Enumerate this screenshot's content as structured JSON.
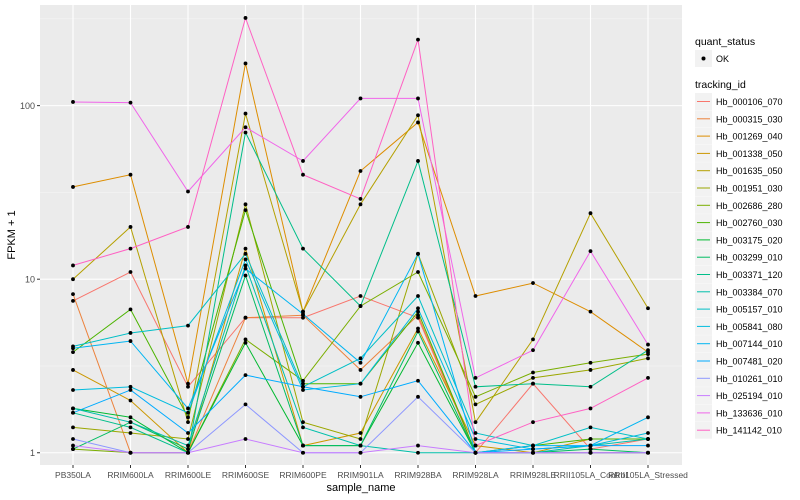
{
  "chart_data": {
    "type": "line",
    "xlabel": "sample_name",
    "ylabel": "FPKM + 1",
    "y_scale": "log10",
    "ylim": [
      0.85,
      380
    ],
    "y_ticks": [
      1,
      10,
      100
    ],
    "y_tick_labels": [
      "1",
      "10",
      "100"
    ],
    "categories": [
      "PB350LA",
      "RRIM600LA",
      "RRIM600LE",
      "RRIM600SE",
      "RRIM600PE",
      "RRIM901LA",
      "RRIM928BA",
      "RRIM928LA",
      "RRIM928LE",
      "RRII105LA_Control",
      "RRII105LA_Stressed"
    ],
    "legend_position": "right",
    "legend": {
      "status_title": "quant_status",
      "status_items": [
        "OK"
      ],
      "tracking_title": "tracking_id"
    },
    "grid": true,
    "series": [
      {
        "name": "Hb_000106_070",
        "color": "#F8766D",
        "values": [
          7.5,
          11.0,
          2.4,
          6.0,
          6.0,
          8.0,
          6.0,
          1.0,
          2.5,
          1.05,
          1.2
        ]
      },
      {
        "name": "Hb_000315_030",
        "color": "#EC823C",
        "values": [
          8.2,
          1.0,
          1.0,
          6.0,
          6.2,
          3.0,
          6.2,
          1.0,
          1.0,
          1.0,
          1.0
        ]
      },
      {
        "name": "Hb_001269_040",
        "color": "#DD8D00",
        "values": [
          34.0,
          40.0,
          2.5,
          175.0,
          6.5,
          42.0,
          80.0,
          8.0,
          9.5,
          6.5,
          3.8
        ]
      },
      {
        "name": "Hb_001338_050",
        "color": "#CB9700",
        "values": [
          3.0,
          2.0,
          1.0,
          15.0,
          1.1,
          1.3,
          5.2,
          1.1,
          1.0,
          1.2,
          1.2
        ]
      },
      {
        "name": "Hb_001635_050",
        "color": "#B5A000",
        "values": [
          10.0,
          20.0,
          1.5,
          90.0,
          6.5,
          27.0,
          88.0,
          1.5,
          4.5,
          24.0,
          6.8
        ]
      },
      {
        "name": "Hb_001951_030",
        "color": "#9BA700",
        "values": [
          1.4,
          1.3,
          1.2,
          27.0,
          1.5,
          1.2,
          14.0,
          1.9,
          2.7,
          3.0,
          3.5
        ]
      },
      {
        "name": "Hb_002686_280",
        "color": "#7AAE00",
        "values": [
          1.05,
          1.0,
          1.0,
          4.5,
          2.6,
          7.0,
          11.0,
          2.1,
          2.9,
          3.3,
          3.7
        ]
      },
      {
        "name": "Hb_002760_030",
        "color": "#4CB400",
        "values": [
          3.8,
          6.7,
          1.6,
          25.0,
          2.5,
          2.5,
          6.5,
          1.0,
          1.1,
          1.2,
          1.2
        ]
      },
      {
        "name": "Hb_003175_020",
        "color": "#00B930",
        "values": [
          1.8,
          1.6,
          1.0,
          4.3,
          1.1,
          1.1,
          4.3,
          1.0,
          1.0,
          1.0,
          1.0
        ]
      },
      {
        "name": "Hb_003299_010",
        "color": "#00BC62",
        "values": [
          1.05,
          1.5,
          1.05,
          10.5,
          1.1,
          1.1,
          5.0,
          1.0,
          1.0,
          1.05,
          1.0
        ]
      },
      {
        "name": "Hb_003371_120",
        "color": "#00BE89",
        "values": [
          1.7,
          1.4,
          1.0,
          70.0,
          15.0,
          7.0,
          48.0,
          2.4,
          2.5,
          2.4,
          3.9
        ]
      },
      {
        "name": "Hb_003384_070",
        "color": "#00BFAA",
        "values": [
          1.8,
          1.5,
          1.1,
          12.0,
          1.4,
          1.1,
          1.0,
          1.0,
          1.0,
          1.1,
          1.2
        ]
      },
      {
        "name": "Hb_005157_010",
        "color": "#00BFC6",
        "values": [
          4.1,
          4.9,
          5.4,
          14.0,
          2.4,
          3.5,
          8.0,
          1.3,
          1.1,
          1.4,
          1.2
        ]
      },
      {
        "name": "Hb_005841_080",
        "color": "#00BCDE",
        "values": [
          2.3,
          2.4,
          1.7,
          13.0,
          2.3,
          2.5,
          6.8,
          1.2,
          1.05,
          1.1,
          1.3
        ]
      },
      {
        "name": "Hb_007144_010",
        "color": "#00B5F2",
        "values": [
          4.0,
          4.4,
          1.8,
          11.5,
          6.3,
          3.3,
          14.0,
          1.0,
          1.1,
          1.1,
          1.6
        ]
      },
      {
        "name": "Hb_007481_020",
        "color": "#00ABFF",
        "values": [
          1.7,
          2.3,
          1.3,
          2.8,
          2.4,
          2.1,
          2.6,
          1.0,
          1.05,
          1.1,
          1.1
        ]
      },
      {
        "name": "Hb_010261_010",
        "color": "#8D97FF",
        "values": [
          1.2,
          1.0,
          1.0,
          1.9,
          1.0,
          1.0,
          2.1,
          1.0,
          1.0,
          1.0,
          1.0
        ]
      },
      {
        "name": "Hb_025194_010",
        "color": "#C77CFF",
        "values": [
          1.1,
          1.0,
          1.0,
          1.2,
          1.0,
          1.0,
          1.1,
          1.0,
          1.0,
          1.0,
          1.0
        ]
      },
      {
        "name": "Hb_133636_010",
        "color": "#F066EA",
        "values": [
          105.0,
          104.0,
          32.0,
          75.0,
          48.0,
          110.0,
          110.0,
          2.7,
          3.9,
          14.5,
          4.2
        ]
      },
      {
        "name": "Hb_141142_010",
        "color": "#FF61C3",
        "values": [
          12.0,
          15.0,
          20.0,
          320.0,
          40.0,
          29.0,
          240.0,
          1.1,
          1.5,
          1.8,
          2.7
        ]
      }
    ]
  }
}
